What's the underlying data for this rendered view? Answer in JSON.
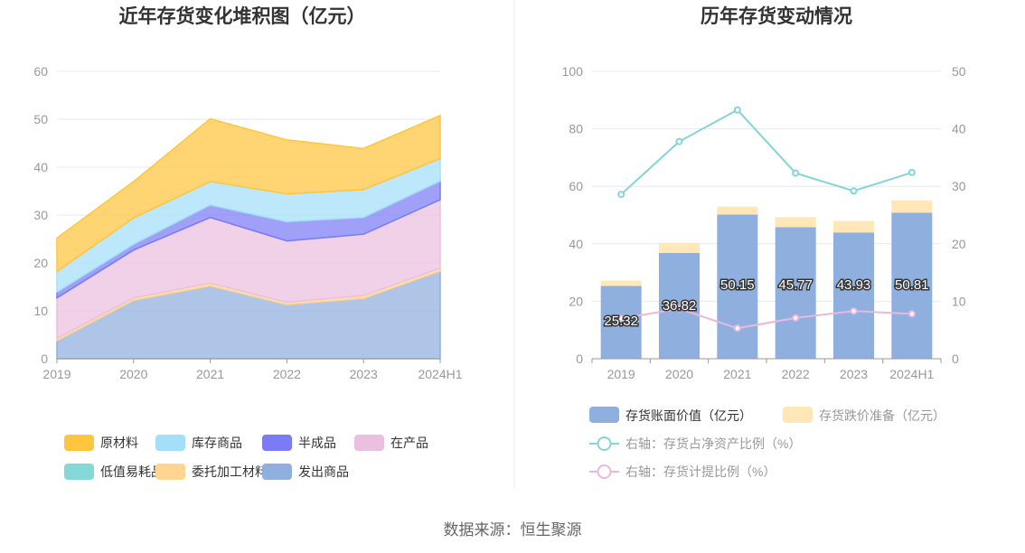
{
  "source": "数据来源：恒生聚源",
  "colors": {
    "raw_material": "#ffc53d",
    "stock_goods": "#a3dff9",
    "semi_finished": "#7b7bf5",
    "in_production": "#ebbfdf",
    "low_value": "#84d8d8",
    "outsourced": "#ffd591",
    "shipped": "#8fafdf",
    "book_value": "#8fafdf",
    "impairment": "#ffe7b8",
    "net_ratio": "#84d4d8",
    "provision_ratio": "#e9b8dd"
  },
  "chart_data": [
    {
      "type": "area",
      "title": "近年存货变化堆积图（亿元）",
      "categories": [
        "2019",
        "2020",
        "2021",
        "2022",
        "2023",
        "2024H1"
      ],
      "ylim": [
        0,
        60
      ],
      "yticks": [
        "0",
        "10",
        "20",
        "30",
        "40",
        "50",
        "60"
      ],
      "stacked": true,
      "series": [
        {
          "name": "发出商品",
          "key": "shipped",
          "values": [
            3.8,
            12.2,
            15.2,
            11.3,
            12.6,
            18.3
          ]
        },
        {
          "name": "委托加工材料",
          "key": "outsourced",
          "values": [
            0.5,
            0.5,
            0.6,
            0.5,
            0.6,
            0.6
          ]
        },
        {
          "name": "在产品",
          "key": "in_production",
          "values": [
            8.4,
            10.0,
            13.7,
            12.8,
            12.8,
            14.3
          ]
        },
        {
          "name": "低值易耗品",
          "key": "low_value",
          "values": [
            0.0,
            0.0,
            0.0,
            0.0,
            0.0,
            0.0
          ]
        },
        {
          "name": "半成品",
          "key": "semi_finished",
          "values": [
            1.2,
            1.2,
            2.6,
            4.0,
            3.5,
            3.9
          ]
        },
        {
          "name": "库存商品",
          "key": "stock_goods",
          "values": [
            4.3,
            5.5,
            4.9,
            5.8,
            5.8,
            4.7
          ]
        },
        {
          "name": "原材料",
          "key": "raw_material",
          "values": [
            7.0,
            7.6,
            13.1,
            11.3,
            8.6,
            9.0
          ]
        }
      ],
      "legend": [
        {
          "name": "原材料",
          "key": "raw_material"
        },
        {
          "name": "库存商品",
          "key": "stock_goods"
        },
        {
          "name": "半成品",
          "key": "semi_finished"
        },
        {
          "name": "在产品",
          "key": "in_production"
        },
        {
          "name": "低值易耗品",
          "key": "low_value"
        },
        {
          "name": "委托加工材料",
          "key": "outsourced"
        },
        {
          "name": "发出商品",
          "key": "shipped"
        }
      ]
    },
    {
      "type": "bar",
      "title": "历年存货变动情况",
      "categories": [
        "2019",
        "2020",
        "2021",
        "2022",
        "2023",
        "2024H1"
      ],
      "ylim": [
        0,
        100
      ],
      "yticks": [
        "0",
        "20",
        "40",
        "60",
        "80",
        "100"
      ],
      "y2lim": [
        0,
        50
      ],
      "y2ticks": [
        "0",
        "10",
        "20",
        "30",
        "40",
        "50"
      ],
      "series": [
        {
          "name": "存货账面价值（亿元）",
          "key": "book_value",
          "type": "bar",
          "axis": "left",
          "values": [
            25.32,
            36.82,
            50.15,
            45.77,
            43.93,
            50.81
          ],
          "labels": [
            "25.32",
            "36.82",
            "50.15",
            "45.77",
            "43.93",
            "50.81"
          ]
        },
        {
          "name": "存货跌价准备（亿元）",
          "key": "impairment",
          "type": "bar",
          "axis": "left",
          "values": [
            1.9,
            3.5,
            2.8,
            3.5,
            4.0,
            4.3
          ]
        },
        {
          "name": "右轴：存货占净资产比例（%）",
          "key": "net_ratio",
          "type": "line",
          "axis": "right",
          "values": [
            28.6,
            37.8,
            43.3,
            32.3,
            29.2,
            32.4
          ]
        },
        {
          "name": "右轴：存货计提比例（%）",
          "key": "provision_ratio",
          "type": "line",
          "axis": "right",
          "values": [
            7.0,
            8.7,
            5.3,
            7.1,
            8.3,
            7.8
          ]
        }
      ],
      "legend": [
        {
          "name": "存货账面价值（亿元）",
          "key": "book_value"
        },
        {
          "name": "存货跌价准备（亿元）",
          "key": "impairment"
        },
        {
          "name": "右轴：存货占净资产比例（%）",
          "key": "net_ratio"
        },
        {
          "name": "右轴：存货计提比例（%）",
          "key": "provision_ratio"
        }
      ]
    }
  ]
}
